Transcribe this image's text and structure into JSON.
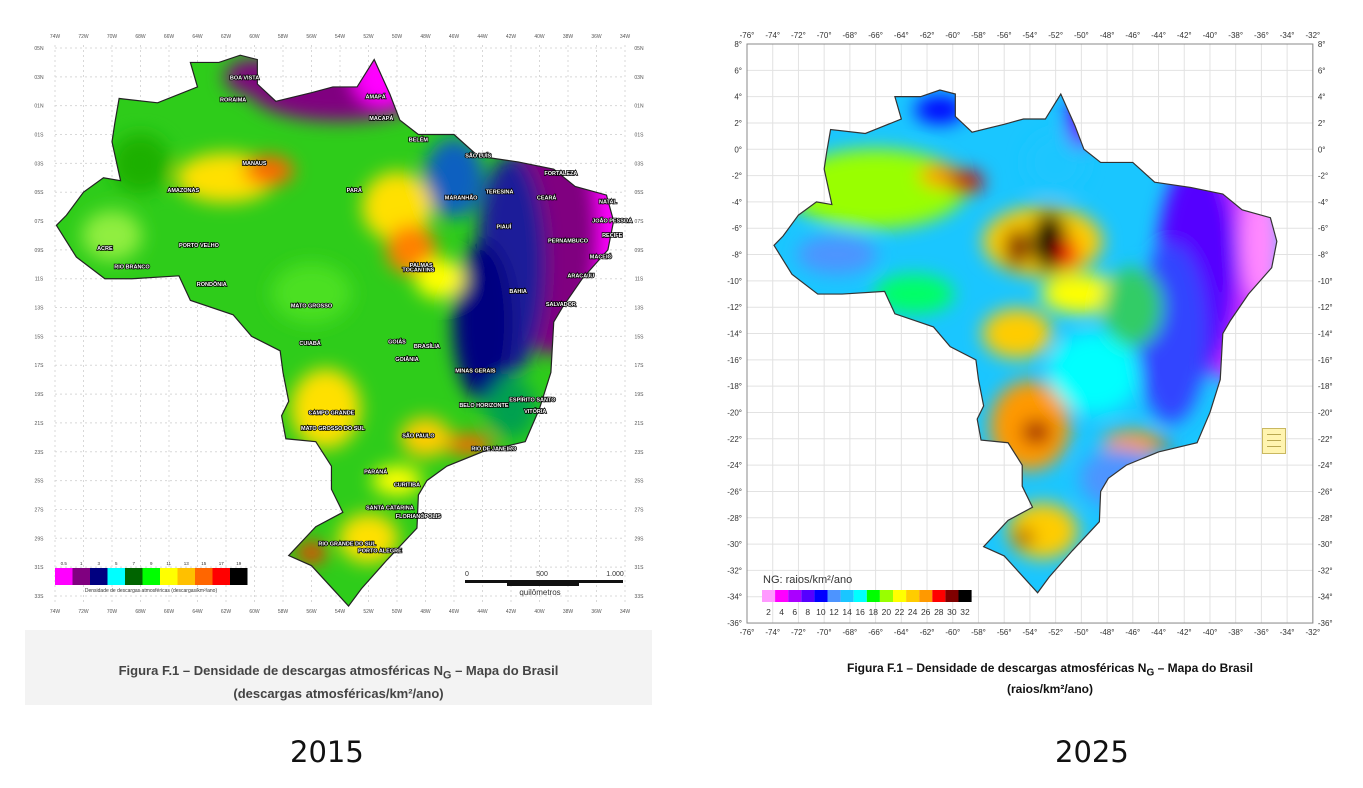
{
  "left_figure": {
    "year_label": "2015",
    "caption_line1": "Figura F.1 – Densidade de descargas atmosféricas N",
    "caption_subscript": "G",
    "caption_line1_end": " – Mapa do Brasil",
    "caption_line2": "(descargas atmosféricas/km²/ano)",
    "legend": {
      "title": "Densidade de descargas atmosféricas (descargas/km²/ano)",
      "labels": [
        "0.5",
        "1",
        "3",
        "5",
        "7",
        "9",
        "11",
        "13",
        "15",
        "17",
        "19"
      ],
      "colors": [
        "#ff00ff",
        "#800080",
        "#000080",
        "#00ffff",
        "#006400",
        "#00ff00",
        "#ffff00",
        "#ffc000",
        "#ff6600",
        "#ff0000",
        "#000000"
      ]
    },
    "scale_bar": {
      "labels": [
        "0",
        "500",
        "1.000"
      ],
      "unit": "quilômetros"
    },
    "lat_labels": [
      "05N",
      "03N",
      "01N",
      "01S",
      "03S",
      "05S",
      "07S",
      "09S",
      "11S",
      "13S",
      "15S",
      "17S",
      "19S",
      "21S",
      "23S",
      "25S",
      "27S",
      "29S",
      "31S",
      "33S"
    ],
    "lon_labels": [
      "74W",
      "72W",
      "70W",
      "68W",
      "66W",
      "64W",
      "62W",
      "60W",
      "58W",
      "56W",
      "54W",
      "52W",
      "50W",
      "48W",
      "46W",
      "44W",
      "42W",
      "40W",
      "38W",
      "36W",
      "34W"
    ],
    "place_labels": [
      {
        "text": "BOA VISTA",
        "lon": -60.7,
        "lat": 2.8
      },
      {
        "text": "RORAIMA",
        "lon": -61.5,
        "lat": 1.3
      },
      {
        "text": "AMAPÁ",
        "lon": -51.5,
        "lat": 1.5
      },
      {
        "text": "MACAPÁ",
        "lon": -51.1,
        "lat": 0.0
      },
      {
        "text": "BELÉM",
        "lon": -48.5,
        "lat": -1.5
      },
      {
        "text": "SÃO LUÍS",
        "lon": -44.3,
        "lat": -2.6
      },
      {
        "text": "FORTALEZA",
        "lon": -38.5,
        "lat": -3.8
      },
      {
        "text": "NATAL",
        "lon": -35.2,
        "lat": -5.8
      },
      {
        "text": "JOÃO PESSOA",
        "lon": -34.9,
        "lat": -7.1
      },
      {
        "text": "RECIFE",
        "lon": -34.9,
        "lat": -8.1
      },
      {
        "text": "MACEIÓ",
        "lon": -35.7,
        "lat": -9.6
      },
      {
        "text": "ARACAJU",
        "lon": -37.1,
        "lat": -10.9
      },
      {
        "text": "SALVADOR",
        "lon": -38.5,
        "lat": -12.9
      },
      {
        "text": "TERESINA",
        "lon": -42.8,
        "lat": -5.1
      },
      {
        "text": "MARANHÃO",
        "lon": -45.5,
        "lat": -5.5
      },
      {
        "text": "CEARÁ",
        "lon": -39.5,
        "lat": -5.5
      },
      {
        "text": "PIAUÍ",
        "lon": -42.5,
        "lat": -7.5
      },
      {
        "text": "PERNAMBUCO",
        "lon": -38.0,
        "lat": -8.5
      },
      {
        "text": "BAHIA",
        "lon": -41.5,
        "lat": -12.0
      },
      {
        "text": "TOCANTINS",
        "lon": -48.5,
        "lat": -10.5
      },
      {
        "text": "PALMAS",
        "lon": -48.3,
        "lat": -10.2
      },
      {
        "text": "PARÁ",
        "lon": -53.0,
        "lat": -5.0
      },
      {
        "text": "AMAZONAS",
        "lon": -65.0,
        "lat": -5.0
      },
      {
        "text": "MANAUS",
        "lon": -60.0,
        "lat": -3.1
      },
      {
        "text": "ACRE",
        "lon": -70.5,
        "lat": -9.0
      },
      {
        "text": "RIO BRANCO",
        "lon": -68.6,
        "lat": -10.3
      },
      {
        "text": "PORTO VELHO",
        "lon": -63.9,
        "lat": -8.8
      },
      {
        "text": "RONDÔNIA",
        "lon": -63.0,
        "lat": -11.5
      },
      {
        "text": "MATO GROSSO",
        "lon": -56.0,
        "lat": -13.0
      },
      {
        "text": "CUIABÁ",
        "lon": -56.1,
        "lat": -15.6
      },
      {
        "text": "GOIÁS",
        "lon": -50.0,
        "lat": -15.5
      },
      {
        "text": "BRASÍLIA",
        "lon": -47.9,
        "lat": -15.8
      },
      {
        "text": "GOIÂNIA",
        "lon": -49.3,
        "lat": -16.7
      },
      {
        "text": "MINAS GERAIS",
        "lon": -44.5,
        "lat": -17.5
      },
      {
        "text": "BELO HORIZONTE",
        "lon": -43.9,
        "lat": -19.9
      },
      {
        "text": "VITÓRIA",
        "lon": -40.3,
        "lat": -20.3
      },
      {
        "text": "ESPÍRITO SANTO",
        "lon": -40.5,
        "lat": -19.5
      },
      {
        "text": "RIO DE JANEIRO",
        "lon": -43.2,
        "lat": -22.9
      },
      {
        "text": "SÃO PAULO",
        "lon": -48.5,
        "lat": -22.0
      },
      {
        "text": "CAMPO GRANDE",
        "lon": -54.6,
        "lat": -20.4
      },
      {
        "text": "MATO GROSSO DO SUL",
        "lon": -54.5,
        "lat": -21.5
      },
      {
        "text": "PARANÁ",
        "lon": -51.5,
        "lat": -24.5
      },
      {
        "text": "CURITIBA",
        "lon": -49.3,
        "lat": -25.4
      },
      {
        "text": "SANTA CATARINA",
        "lon": -50.5,
        "lat": -27.0
      },
      {
        "text": "FLORIANÓPOLIS",
        "lon": -48.5,
        "lat": -27.6
      },
      {
        "text": "RIO GRANDE DO SUL",
        "lon": -53.5,
        "lat": -29.5
      },
      {
        "text": "PORTO ALEGRE",
        "lon": -51.2,
        "lat": -30.0
      }
    ]
  },
  "right_figure": {
    "year_label": "2025",
    "caption_line1": "Figura F.1 – Densidade de descargas atmosféricas N",
    "caption_subscript": "G",
    "caption_line1_end": " – Mapa do Brasil",
    "caption_line2": "(raios/km²/ano)",
    "legend": {
      "title": "NG: raios/km²/ano",
      "labels": [
        "2",
        "4",
        "6",
        "8",
        "10",
        "12",
        "14",
        "16",
        "18",
        "20",
        "22",
        "24",
        "26",
        "28",
        "30",
        "32"
      ],
      "colors": [
        "#ff99ff",
        "#ff00ff",
        "#aa00ff",
        "#5500ff",
        "#0000ff",
        "#4d94ff",
        "#1ac6ff",
        "#00ffff",
        "#00ff00",
        "#99ff00",
        "#ffff00",
        "#ffcc00",
        "#ff9900",
        "#ff0000",
        "#800000",
        "#000000"
      ]
    },
    "lat_labels": [
      "8°",
      "6°",
      "4°",
      "2°",
      "0°",
      "-2°",
      "-4°",
      "-6°",
      "-8°",
      "-10°",
      "-12°",
      "-14°",
      "-16°",
      "-18°",
      "-20°",
      "-22°",
      "-24°",
      "-26°",
      "-28°",
      "-30°",
      "-32°",
      "-34°",
      "-36°"
    ],
    "lon_labels": [
      "-76°",
      "-74°",
      "-72°",
      "-70°",
      "-68°",
      "-66°",
      "-64°",
      "-62°",
      "-60°",
      "-58°",
      "-56°",
      "-54°",
      "-52°",
      "-50°",
      "-48°",
      "-46°",
      "-44°",
      "-42°",
      "-40°",
      "-38°",
      "-36°",
      "-34°",
      "-32°"
    ],
    "note_icon": "note-icon"
  }
}
